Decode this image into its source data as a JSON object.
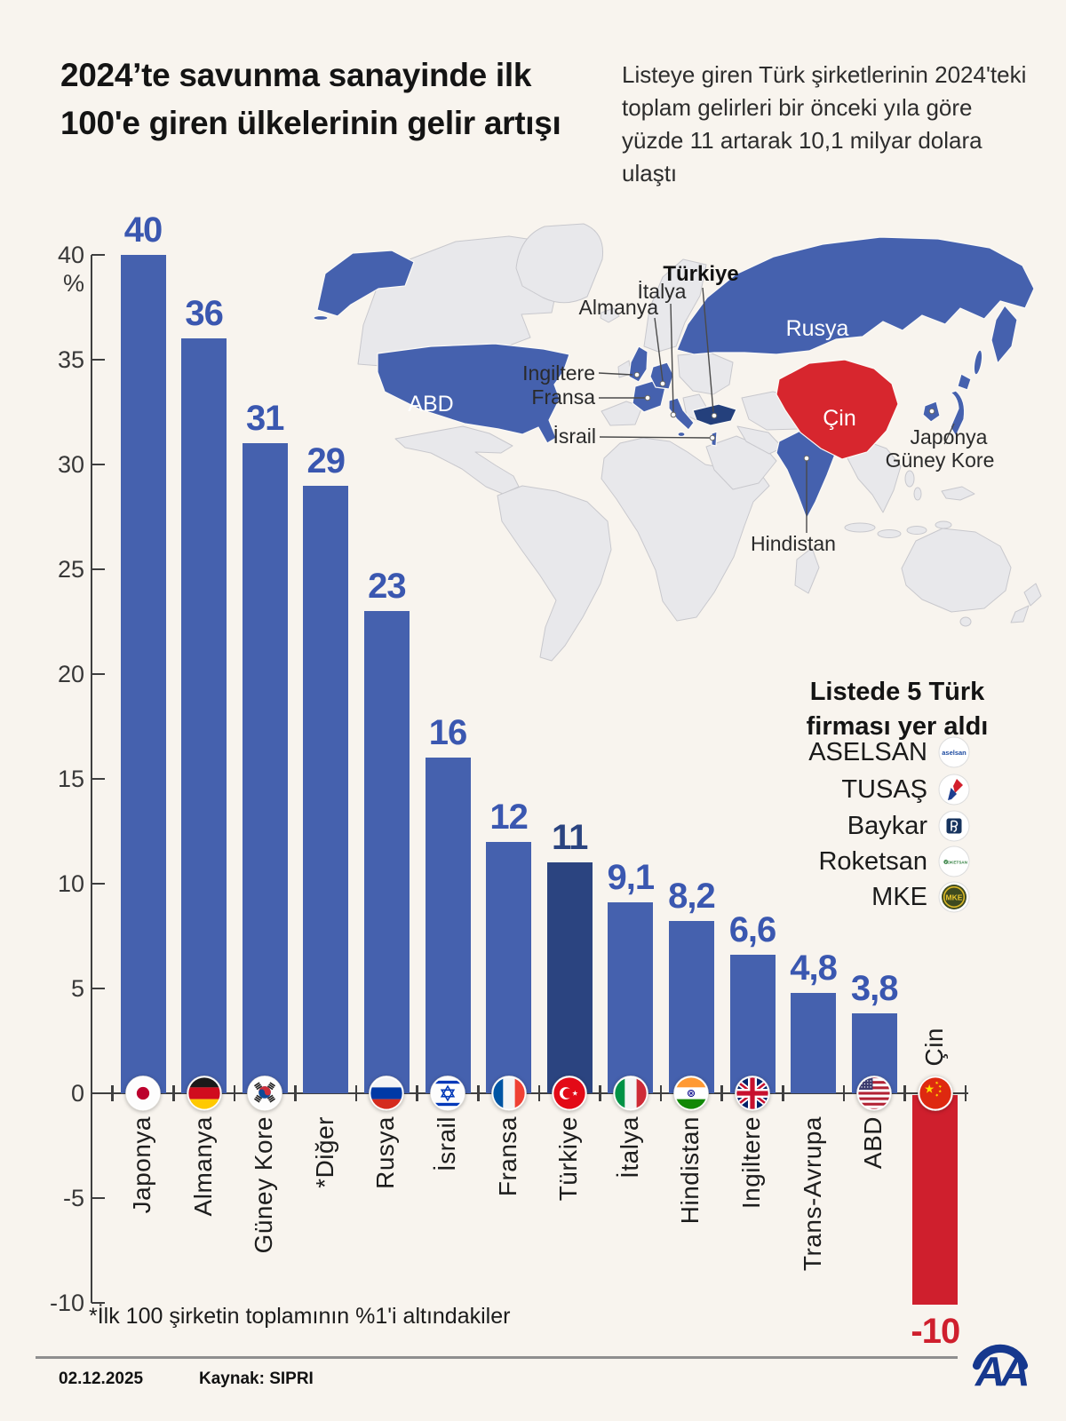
{
  "title": {
    "lines": [
      "2024’te savunma sanayinde ilk",
      "100'e giren ülkelerinin gelir artışı"
    ]
  },
  "subtitle": "Listeye giren Türk şirketlerinin 2024'teki toplam gelirleri bir önceki yıla göre yüzde 11 artarak 10,1 milyar dolara ulaştı",
  "chart_data": {
    "type": "bar",
    "title": "2024'te savunma sanayinde ilk 100'e giren ülkelerinin gelir artışı",
    "unit": "%",
    "ylim": [
      -10,
      40
    ],
    "yticks": [
      40,
      35,
      30,
      25,
      20,
      15,
      10,
      5,
      0,
      -5,
      -10
    ],
    "grid": false,
    "categories": [
      "Japonya",
      "Almanya",
      "Güney Kore",
      "*Diğer",
      "Rusya",
      "İsrail",
      "Fransa",
      "Türkiye",
      "İtalya",
      "Hindistan",
      "Ingiltere",
      "Trans-Avrupa",
      "ABD",
      "Çin"
    ],
    "values": [
      40,
      36,
      31,
      29,
      23,
      16,
      12,
      11,
      9.1,
      8.2,
      6.6,
      4.8,
      3.8,
      -10
    ],
    "value_labels": [
      "40",
      "36",
      "31",
      "29",
      "23",
      "16",
      "12",
      "11",
      "9,1",
      "8,2",
      "6,6",
      "4,8",
      "3,8",
      "-10"
    ],
    "flags": [
      "japan",
      "germany",
      "south-korea",
      null,
      "russia",
      "israel",
      "france",
      "turkey",
      "italy",
      "india",
      "uk",
      null,
      "usa",
      "china"
    ],
    "highlight_index": 7,
    "negative_index": 13,
    "colors": {
      "bar": "#4561ae",
      "bar_highlight": "#2b4480",
      "bar_negative": "#cf1f2d",
      "value_label": "#3a57b0",
      "value_label_highlight": "#2b4480",
      "value_label_negative": "#cf1f2d",
      "axis": "#3f3f3f"
    }
  },
  "map": {
    "labels": {
      "abd": "ABD",
      "rusya": "Rusya",
      "cin": "Çin",
      "turkiye": "Türkiye",
      "italya": "İtalya",
      "almanya": "Almanya",
      "ingiltere": "Ingiltere",
      "fransa": "Fransa",
      "israil": "İsrail",
      "hindistan": "Hindistan",
      "japonya": "Japonya",
      "guney_kore": "Güney Kore"
    },
    "colors": {
      "land": "#e8e8eb",
      "border": "#c8c8cd",
      "highlight": "#4561ae",
      "turkiye": "#24407c",
      "cin": "#d7262e"
    }
  },
  "legend": {
    "title_lines": [
      "Listede 5 Türk",
      "firması yer aldı"
    ],
    "companies": [
      {
        "name": "ASELSAN",
        "icon": "aselsan-logo"
      },
      {
        "name": "TUSAŞ",
        "icon": "tusas-logo"
      },
      {
        "name": "Baykar",
        "icon": "baykar-logo"
      },
      {
        "name": "Roketsan",
        "icon": "roketsan-logo"
      },
      {
        "name": "MKE",
        "icon": "mke-logo"
      }
    ]
  },
  "footnote": "*İlk 100 şirketin toplamının %1'i altındakiler",
  "footer": {
    "date": "02.12.2025",
    "source": "Kaynak: SIPRI",
    "agency_logo": "AA"
  }
}
